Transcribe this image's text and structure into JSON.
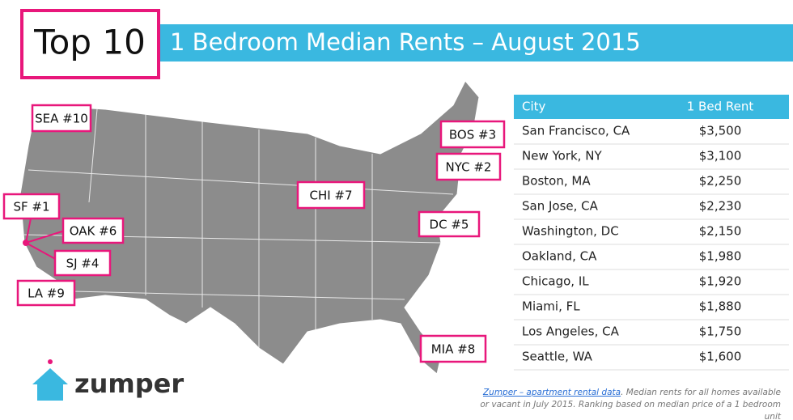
{
  "header": {
    "title": "Top 10",
    "subtitle": "1 Bedroom Median Rents – August 2015"
  },
  "map_labels": [
    "SEA #10",
    "SF #1",
    "OAK #6",
    "SJ #4",
    "LA #9",
    "CHI #7",
    "BOS #3",
    "NYC #2",
    "DC #5",
    "MIA #8"
  ],
  "table": {
    "columns": [
      "City",
      "1 Bed Rent"
    ],
    "rows": [
      [
        "San Francisco, CA",
        "$3,500"
      ],
      [
        "New York, NY",
        "$3,100"
      ],
      [
        "Boston, MA",
        "$2,250"
      ],
      [
        "San Jose, CA",
        "$2,230"
      ],
      [
        "Washington, DC",
        "$2,150"
      ],
      [
        "Oakland, CA",
        "$1,980"
      ],
      [
        "Chicago, IL",
        "$1,920"
      ],
      [
        "Miami, FL",
        "$1,880"
      ],
      [
        "Los Angeles, CA",
        "$1,750"
      ],
      [
        "Seattle, WA",
        "$1,600"
      ]
    ]
  },
  "logo": "zumper",
  "footnote": {
    "link": "Zumper – apartment rental data",
    "text": ". Median rents for all homes available or vacant in July 2015. Ranking based on median price of a 1 bedroom unit"
  }
}
